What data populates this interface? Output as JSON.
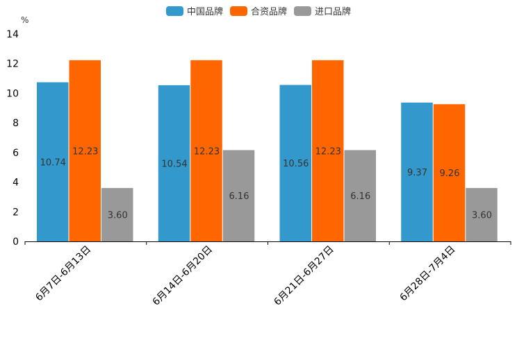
{
  "chart_data": {
    "type": "bar",
    "unit": "%",
    "categories": [
      "6月7日-6月13日",
      "6月14日-6月20日",
      "6月21日-6月27日",
      "6月28日-7月4日"
    ],
    "series": [
      {
        "name": "中国品牌",
        "color": "#3399cc",
        "values": [
          10.74,
          10.54,
          10.56,
          9.37
        ],
        "labels": [
          "10.74",
          "10.54",
          "10.56",
          "9.37"
        ]
      },
      {
        "name": "合资品牌",
        "color": "#ff6600",
        "values": [
          12.23,
          12.23,
          12.23,
          9.26
        ],
        "labels": [
          "12.23",
          "12.23",
          "12.23",
          "9.26"
        ]
      },
      {
        "name": "进口品牌",
        "color": "#999999",
        "values": [
          3.6,
          6.16,
          6.16,
          3.6
        ],
        "labels": [
          "3.60",
          "6.16",
          "6.16",
          "3.60"
        ]
      }
    ],
    "yticks": [
      "0",
      "2",
      "4",
      "6",
      "8",
      "10",
      "12",
      "14"
    ],
    "ylim": [
      0,
      14
    ],
    "legend_position": "top-center"
  }
}
